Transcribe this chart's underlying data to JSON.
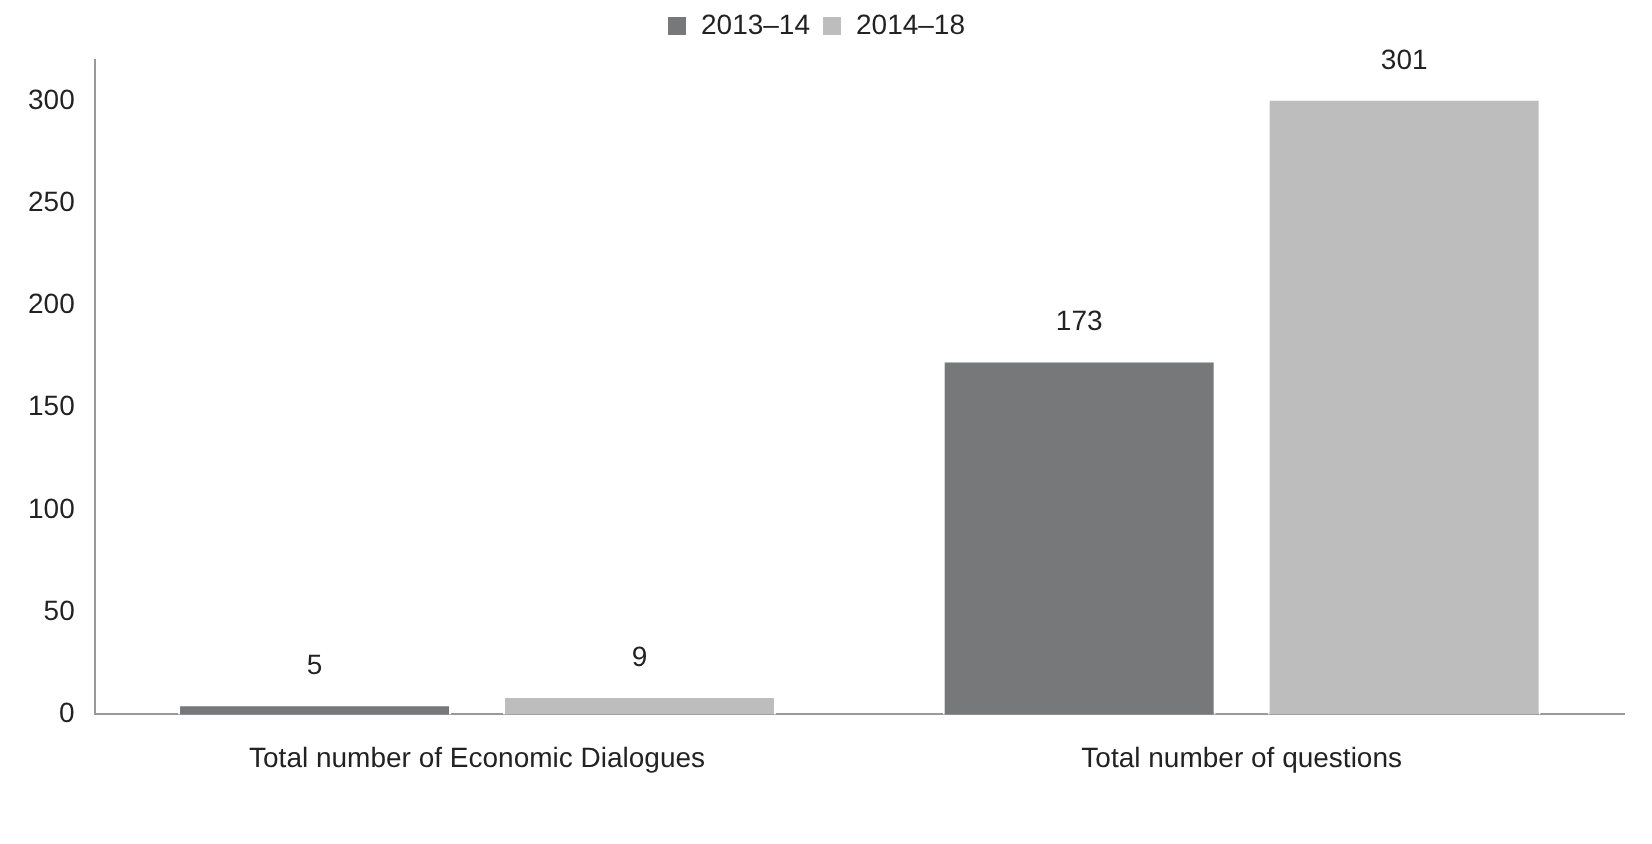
{
  "chart_data": {
    "type": "bar",
    "categories": [
      "Total number of Economic Dialogues",
      "Total number of questions"
    ],
    "series": [
      {
        "name": "2013–14",
        "color": "#77787a",
        "values": [
          5,
          173
        ]
      },
      {
        "name": "2014–18",
        "color": "#bdbdbd",
        "values": [
          9,
          301
        ]
      }
    ],
    "ylim": [
      0,
      320
    ],
    "yticks": [
      0,
      50,
      100,
      150,
      200,
      250,
      300
    ],
    "grid": false,
    "legend": "top",
    "data_labels": true
  }
}
